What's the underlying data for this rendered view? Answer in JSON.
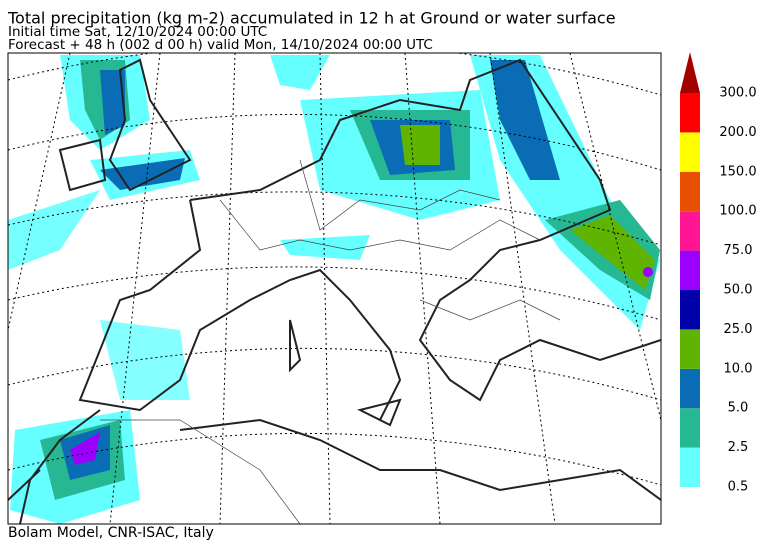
{
  "header": {
    "title": "Total precipitation (kg m-2) accumulated in  12 h at Ground or water surface",
    "initial_time": "Initial time  Sat, 12/10/2024  00:00 UTC",
    "forecast": "Forecast  +  48 h  (002 d 00 h)  valid Mon, 14/10/2024 00:00 UTC"
  },
  "footer": "Bolam Model, CNR-ISAC, Italy",
  "colorbar": {
    "levels": [
      {
        "value": 0.5,
        "label": "0.5"
      },
      {
        "value": 2.5,
        "label": "2.5"
      },
      {
        "value": 5,
        "label": "5.0"
      },
      {
        "value": 10,
        "label": "10.0"
      },
      {
        "value": 25,
        "label": "25.0"
      },
      {
        "value": 50,
        "label": "50.0"
      },
      {
        "value": 75,
        "label": "75.0"
      },
      {
        "value": 100,
        "label": "100.0"
      },
      {
        "value": 150,
        "label": "150.0"
      },
      {
        "value": 200,
        "label": "200.0"
      },
      {
        "value": 300,
        "label": "300.0"
      }
    ],
    "colors": [
      "#66ffff",
      "#26b893",
      "#0a6cb4",
      "#5eb400",
      "#0000a8",
      "#9b00ff",
      "#ff1493",
      "#e65000",
      "#ffff00",
      "#ff0000"
    ],
    "extend_color": "#a50000"
  }
}
